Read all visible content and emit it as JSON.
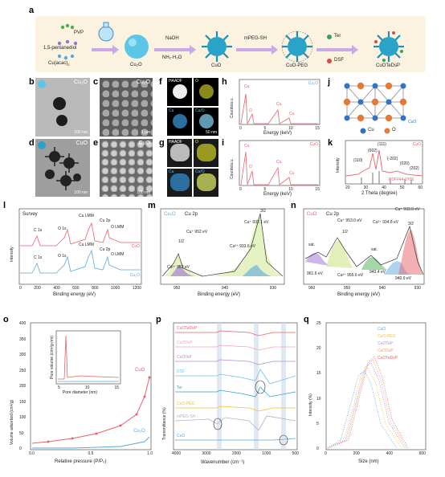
{
  "panel_a": {
    "label": "a",
    "reagent_pvp": "PVP",
    "reagent_pentanediol": "1,5-pentanediol",
    "reagent_cuacac": "Cu(acac)",
    "reagent_cuacac_sub": "2",
    "step1_top": "NaOH",
    "step1_bottom": "NH₂·H₂O",
    "step2": "mPEG-SH",
    "step3_top": "Ter",
    "step3_bottom": "DSF",
    "product_cu2o": "Cu₂O",
    "product_cuo": "CuO",
    "product_cuopeg": "CuO-PEG",
    "product_final": "CuOTeDsP"
  },
  "panel_b": {
    "label": "b",
    "tag": "Cu₂O",
    "scale": "100 nm"
  },
  "panel_c": {
    "label": "c",
    "tag": "Cu₂O",
    "scale": "1 μm"
  },
  "panel_d": {
    "label": "d",
    "tag": "CuO",
    "scale": "100 nm"
  },
  "panel_e": {
    "label": "e",
    "tag": "CuO",
    "scale": "100 nm"
  },
  "panel_f": {
    "label": "f",
    "haadf": "HAADF",
    "o": "O",
    "cu": "Cu",
    "cuo": "Cu/O",
    "scale": "50 nm"
  },
  "panel_g": {
    "label": "g",
    "haadf": "HAADF",
    "o": "O",
    "cu": "Cu",
    "cuo": "Cu/O"
  },
  "panel_h": {
    "label": "h",
    "tag": "Cu₂O",
    "ylabel": "Counts/a.u.",
    "xlabel": "Energy (keV)",
    "cu1": "Cu",
    "o": "O",
    "cu2": "Cu",
    "cu3": "Cu",
    "ticks": [
      "0",
      "5",
      "10",
      "15"
    ]
  },
  "panel_i": {
    "label": "i",
    "tag": "CuO",
    "ylabel": "Counts/a.u.",
    "xlabel": "Energy (keV)",
    "cu1": "Cu",
    "o": "O",
    "cu2": "Cu",
    "cu3": "Cu",
    "ticks": [
      "0",
      "5",
      "10",
      "15"
    ]
  },
  "panel_j": {
    "label": "j",
    "tag": "CuO",
    "legend_cu": "Cu",
    "legend_o": "O"
  },
  "panel_k": {
    "label": "k",
    "tag": "CuO",
    "ylabel": "Intensity",
    "xlabel": "2 Theta (degree)",
    "pdf": "PDF#44-0706",
    "peaks": [
      "(110)",
      "(002)",
      "(111)",
      "(-202)",
      "(020)",
      "(202)"
    ],
    "ticks": [
      "20",
      "30",
      "40",
      "50",
      "60"
    ]
  },
  "panel_l": {
    "label": "l",
    "title": "Survey",
    "ylabel": "Intensity",
    "xlabel": "Binding energy (eV)",
    "cuo": "CuO",
    "cu2o": "Cu₂O",
    "peaks_top": [
      "C 1s",
      "O 1s",
      "Cu LMM",
      "Cu 2p",
      "O LMM"
    ],
    "peaks_bottom": [
      "C 1s",
      "O 1s",
      "Cu LMM",
      "Cu 2p",
      "O LMM"
    ],
    "ticks": [
      "0",
      "200",
      "400",
      "600",
      "800",
      "1000",
      "1200"
    ]
  },
  "panel_m": {
    "label": "m",
    "tag": "Cu₂O",
    "title": "Cu 2p",
    "xlabel": "Binding energy (eV)",
    "half": "1/2",
    "three_half": "3/2",
    "ann": [
      "Cu⁺ 932.1 eV",
      "Cu⁺ 952 eV",
      "Cu²⁺ 933.6 eV",
      "Cu²⁺ 953 eV"
    ],
    "ticks": [
      "950",
      "940",
      "930"
    ]
  },
  "panel_n": {
    "label": "n",
    "tag": "CuO",
    "title": "Cu 2p",
    "xlabel": "Binding energy (eV)",
    "half": "1/2",
    "three_half": "3/2",
    "ann": [
      "sat.",
      "Cu⁺ 953.0 eV",
      "Cu⁺ 933.0 eV",
      "Cu²⁺ 934.8 eV",
      "sat.",
      "961.6 eV",
      "Cu²⁺ 955.6 eV",
      "943.4 eV",
      "940.9 eV"
    ],
    "ticks": [
      "960",
      "950",
      "940",
      "930"
    ]
  },
  "panel_o": {
    "label": "o",
    "ylabel": "Volume adsorbed (cm³/g)",
    "xlabel": "Relative pressure (P/P₀)",
    "cuo": "CuO",
    "cu2o": "Cu₂O",
    "inset_ylabel": "Pore volume (cm³/g·nm)",
    "inset_xlabel": "Pore diameter (nm)",
    "inset_xticks": [
      "5",
      "10",
      "15"
    ],
    "yticks": [
      "0",
      "50",
      "100",
      "150",
      "200",
      "250",
      "300",
      "350",
      "400"
    ],
    "xticks": [
      "0.0",
      "0.5",
      "1.0"
    ]
  },
  "panel_p": {
    "label": "p",
    "ylabel": "Transmittance (%)",
    "xlabel": "Wavenumber (cm⁻¹)",
    "series": [
      "CuOTeDsP",
      "CuODsP",
      "CuOTeP",
      "DSF",
      "Ter",
      "CuO-PEG",
      "mPEG-SH",
      "CuO"
    ],
    "ticks": [
      "4000",
      "3000",
      "2000",
      "1000",
      "500"
    ]
  },
  "panel_q": {
    "label": "q",
    "ylabel": "Intensity (%)",
    "xlabel": "Size (nm)",
    "series": [
      "CuO",
      "CuO-PEG",
      "CuOTeP",
      "CuODsP",
      "CuOTeDsP"
    ],
    "yticks": [
      "0",
      "5",
      "10",
      "15",
      "20",
      "25"
    ],
    "xticks": [
      "0",
      "200",
      "400",
      "600"
    ]
  },
  "colors": {
    "cuo": "#e8636a",
    "cu2o": "#5aa8e0",
    "cu_atom": "#2f74c8",
    "o_atom": "#e37a3a",
    "teal": "#3ab7c8"
  }
}
